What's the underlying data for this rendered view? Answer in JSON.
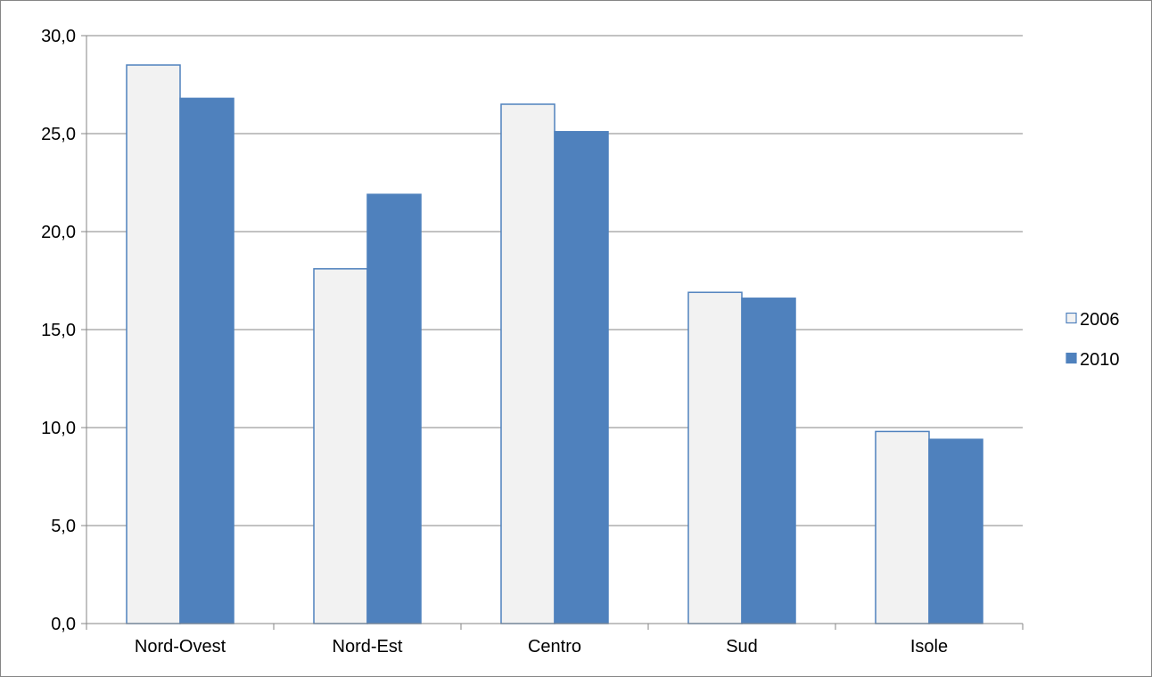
{
  "chart_data": {
    "type": "bar",
    "title": "",
    "xlabel": "",
    "ylabel": "",
    "categories": [
      "Nord-Ovest",
      "Nord-Est",
      "Centro",
      "Sud",
      "Isole"
    ],
    "series": [
      {
        "name": "2006",
        "values": [
          28.5,
          18.1,
          26.5,
          16.9,
          9.8
        ]
      },
      {
        "name": "2010",
        "values": [
          26.8,
          21.9,
          25.1,
          16.6,
          9.4
        ]
      }
    ],
    "ylim": [
      0,
      30
    ],
    "yticks": [
      "0,0",
      "5,0",
      "10,0",
      "15,0",
      "20,0",
      "25,0",
      "30,0"
    ],
    "grid": true,
    "legend_position": "right"
  },
  "colors": {
    "series_2006_fill": "#f2f2f2",
    "series_2006_stroke": "#4f81bd",
    "series_2010_fill": "#4f81bd",
    "gridline": "#868686",
    "axis": "#868686"
  }
}
